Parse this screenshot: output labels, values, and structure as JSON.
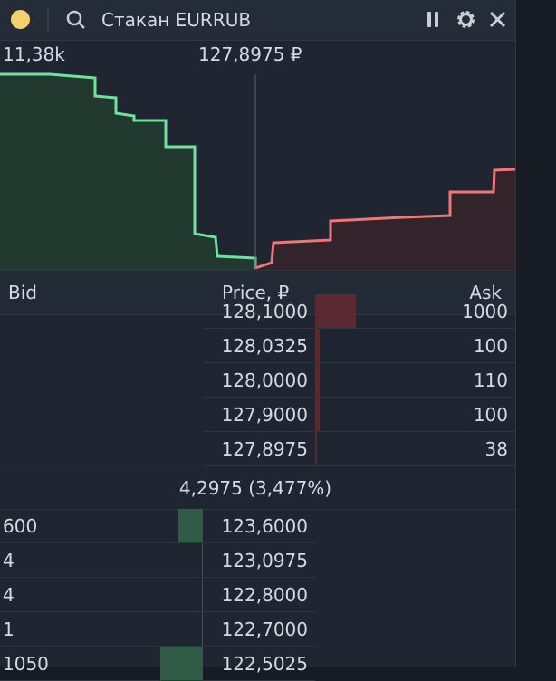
{
  "header": {
    "title": "Стакан EURRUB"
  },
  "chart": {
    "volume_label": "11,38k",
    "price_label": "127,8975 ₽"
  },
  "table": {
    "columns": [
      "Bid",
      "Price, ₽",
      "Ask"
    ],
    "asks": [
      {
        "price": "128,1000",
        "qty": 1000
      },
      {
        "price": "128,0325",
        "qty": 100
      },
      {
        "price": "128,0000",
        "qty": 110
      },
      {
        "price": "127,9000",
        "qty": 100
      },
      {
        "price": "127,8975",
        "qty": 38
      }
    ],
    "spread": "4,2975 (3,477%)",
    "bids": [
      {
        "qty": 600,
        "price": "123,6000"
      },
      {
        "qty": 4,
        "price": "123,0975"
      },
      {
        "qty": 4,
        "price": "122,8000"
      },
      {
        "qty": 1,
        "price": "122,7000"
      },
      {
        "qty": 1050,
        "price": "122,5025"
      }
    ]
  }
}
